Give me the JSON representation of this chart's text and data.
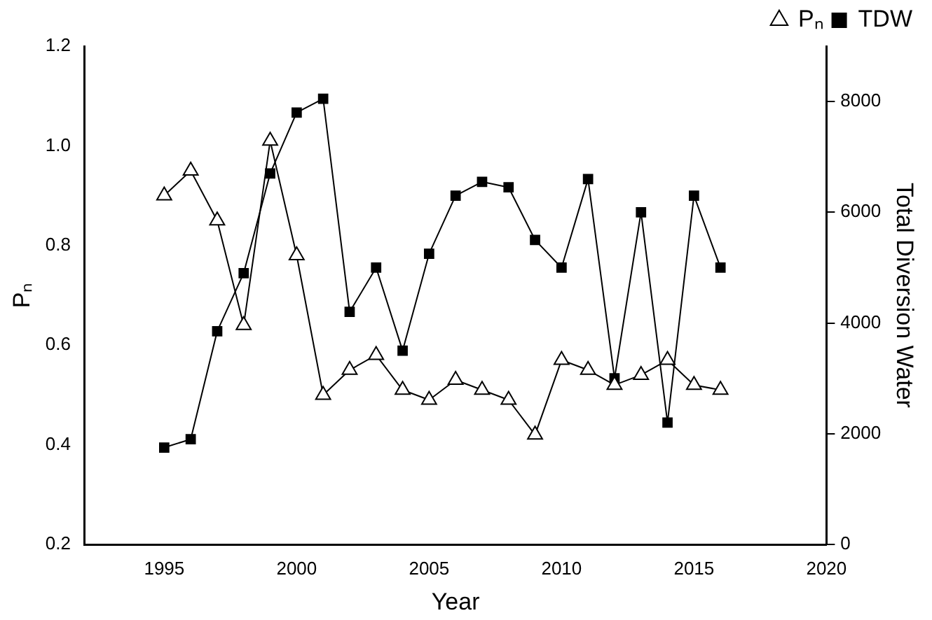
{
  "chart_data": {
    "type": "line",
    "xlabel": "Year",
    "ylabel": "Pₙ",
    "y2label": "Total Diversion Water",
    "x": [
      1995,
      1996,
      1997,
      1998,
      1999,
      2000,
      2001,
      2002,
      2003,
      2004,
      2005,
      2006,
      2007,
      2008,
      2009,
      2010,
      2011,
      2012,
      2013,
      2014,
      2015,
      2016
    ],
    "series": [
      {
        "name": "Pₙ",
        "color": "#000000",
        "marker": "triangle",
        "values": [
          0.9,
          0.95,
          0.85,
          0.64,
          1.01,
          0.78,
          0.5,
          0.55,
          0.58,
          0.51,
          0.49,
          0.53,
          0.51,
          0.49,
          0.42,
          0.57,
          0.55,
          0.52,
          0.54,
          0.57,
          0.52,
          0.51
        ]
      },
      {
        "name": "TDW",
        "color": "#000000",
        "marker": "square",
        "axis": "y2",
        "values": [
          1750,
          1900,
          3850,
          4900,
          6700,
          7800,
          8050,
          4200,
          5000,
          3500,
          5250,
          6300,
          6550,
          6450,
          5500,
          5000,
          6600,
          3000,
          6000,
          2200,
          6300,
          5000
        ]
      }
    ],
    "xlim": [
      1992,
      2020
    ],
    "xticks": [
      1995,
      2000,
      2005,
      2010,
      2015,
      2020
    ],
    "ylim": [
      0.2,
      1.2
    ],
    "yticks": [
      {
        "value": 0.2,
        "label": "0.2"
      },
      {
        "value": 0.4,
        "label": "0.4"
      },
      {
        "value": 0.6,
        "label": "0.6"
      },
      {
        "value": 0.8,
        "label": "0.8"
      },
      {
        "value": 1.0,
        "label": "1.0"
      },
      {
        "value": 1.2,
        "label": "1.2"
      }
    ],
    "y2lim": [
      0,
      9000
    ],
    "y2ticks": [
      0,
      2000,
      4000,
      6000,
      8000
    ],
    "grid": false,
    "legend": "top right",
    "line_style": "solid"
  }
}
